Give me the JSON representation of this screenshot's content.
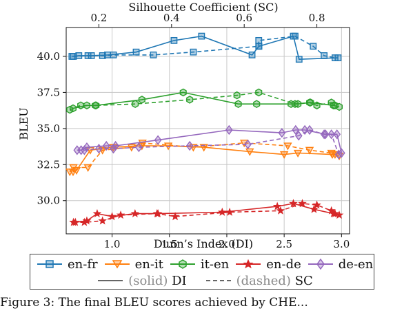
{
  "chart_data": {
    "type": "line",
    "title": "",
    "xlabel": "Dunn’s Index (DI)",
    "x2label": "Silhouette Coefficient (SC)",
    "ylabel": "BLEU",
    "xlim": [
      0.6,
      3.07
    ],
    "x2lim": [
      0.11,
      0.89
    ],
    "ylim": [
      27.7,
      42.0
    ],
    "xticks": [
      "1.0",
      "1.5",
      "2.0",
      "2.5",
      "3.0"
    ],
    "xtick_values": [
      1.0,
      1.5,
      2.0,
      2.5,
      3.0
    ],
    "x2ticks": [
      "0.2",
      "0.4",
      "0.6",
      "0.8"
    ],
    "x2tick_values": [
      0.2,
      0.4,
      0.6,
      0.8
    ],
    "yticks": [
      "30.0",
      "32.5",
      "35.0",
      "37.5",
      "40.0"
    ],
    "ytick_values": [
      30.0,
      32.5,
      35.0,
      37.5,
      40.0
    ],
    "grid": true,
    "legend_position": "below",
    "series": [
      {
        "name": "en-fr",
        "color": "#1f77b4",
        "marker": "square",
        "di_x": [
          0.65,
          0.71,
          0.82,
          0.96,
          1.21,
          1.54,
          1.78,
          2.22,
          2.28,
          2.58,
          2.63,
          2.97
        ],
        "di_y": [
          40.0,
          40.05,
          40.05,
          40.1,
          40.3,
          41.1,
          41.4,
          40.1,
          40.7,
          41.4,
          39.8,
          39.9
        ],
        "sc_x": [
          0.13,
          0.17,
          0.21,
          0.24,
          0.35,
          0.46,
          0.64,
          0.64,
          0.74,
          0.79,
          0.82,
          0.85
        ],
        "sc_y": [
          40.0,
          40.05,
          40.05,
          40.1,
          40.1,
          40.3,
          40.7,
          41.1,
          41.4,
          40.7,
          40.05,
          39.9
        ]
      },
      {
        "name": "en-it",
        "color": "#ff7f0e",
        "marker": "triangle-down",
        "di_x": [
          0.66,
          0.69,
          0.81,
          1.01,
          1.26,
          1.49,
          1.8,
          2.2,
          2.5,
          2.62,
          2.92,
          2.98
        ],
        "di_y": [
          32.0,
          32.1,
          33.5,
          33.7,
          33.8,
          33.8,
          33.7,
          33.4,
          33.2,
          33.3,
          33.2,
          33.1
        ],
        "sc_x": [
          0.12,
          0.13,
          0.17,
          0.21,
          0.29,
          0.32,
          0.46,
          0.6,
          0.72,
          0.78,
          0.84,
          0.85
        ],
        "sc_y": [
          32.0,
          32.3,
          32.3,
          33.5,
          33.7,
          34.0,
          33.7,
          34.0,
          33.8,
          33.5,
          33.3,
          33.2
        ]
      },
      {
        "name": "it-en",
        "color": "#2ca02c",
        "marker": "hexagon",
        "di_x": [
          0.66,
          0.78,
          0.86,
          1.26,
          1.62,
          2.1,
          2.26,
          2.56,
          2.62,
          2.73,
          2.93,
          2.98
        ],
        "di_y": [
          36.4,
          36.6,
          36.6,
          37.0,
          37.5,
          36.7,
          36.7,
          36.7,
          36.7,
          36.8,
          36.6,
          36.5
        ],
        "sc_x": [
          0.12,
          0.15,
          0.19,
          0.3,
          0.45,
          0.58,
          0.64,
          0.74,
          0.78,
          0.8,
          0.84,
          0.85
        ],
        "sc_y": [
          36.3,
          36.6,
          36.6,
          36.7,
          37.0,
          37.3,
          37.5,
          36.7,
          36.8,
          36.6,
          36.8,
          36.6
        ]
      },
      {
        "name": "en-de",
        "color": "#d62728",
        "marker": "star",
        "di_x": [
          0.68,
          0.78,
          0.87,
          1.0,
          1.2,
          1.4,
          1.96,
          2.44,
          2.58,
          2.76,
          2.93,
          2.98
        ],
        "di_y": [
          28.5,
          28.6,
          29.1,
          28.9,
          29.1,
          29.1,
          29.2,
          29.6,
          29.8,
          29.4,
          29.1,
          29.0
        ],
        "sc_x": [
          0.13,
          0.16,
          0.21,
          0.26,
          0.36,
          0.41,
          0.56,
          0.7,
          0.76,
          0.8,
          0.84,
          0.85
        ],
        "sc_y": [
          28.5,
          28.5,
          28.6,
          29.0,
          29.1,
          28.9,
          29.2,
          29.3,
          29.8,
          29.7,
          29.3,
          29.1
        ]
      },
      {
        "name": "de-en",
        "color": "#9467bd",
        "marker": "diamond",
        "di_x": [
          0.73,
          0.78,
          0.95,
          1.03,
          1.4,
          2.02,
          2.48,
          2.6,
          2.68,
          2.86,
          2.96,
          3.0
        ],
        "di_y": [
          33.5,
          33.7,
          33.8,
          33.8,
          34.2,
          34.9,
          34.7,
          34.9,
          34.9,
          34.6,
          34.6,
          33.3
        ],
        "sc_x": [
          0.14,
          0.16,
          0.2,
          0.24,
          0.31,
          0.45,
          0.61,
          0.75,
          0.78,
          0.82,
          0.84,
          0.86
        ],
        "sc_y": [
          33.5,
          33.5,
          33.6,
          33.6,
          33.7,
          33.8,
          33.9,
          34.5,
          34.9,
          34.6,
          34.6,
          33.2
        ]
      }
    ]
  },
  "legend": {
    "entries": [
      "en-fr",
      "en-it",
      "it-en",
      "en-de",
      "de-en"
    ],
    "style_solid_prefix": "(solid)",
    "style_solid_label": "DI",
    "style_dashed_prefix": "(dashed)",
    "style_dashed_label": "SC"
  },
  "caption": "Figure 3: The final BLEU scores achieved by CHE..."
}
